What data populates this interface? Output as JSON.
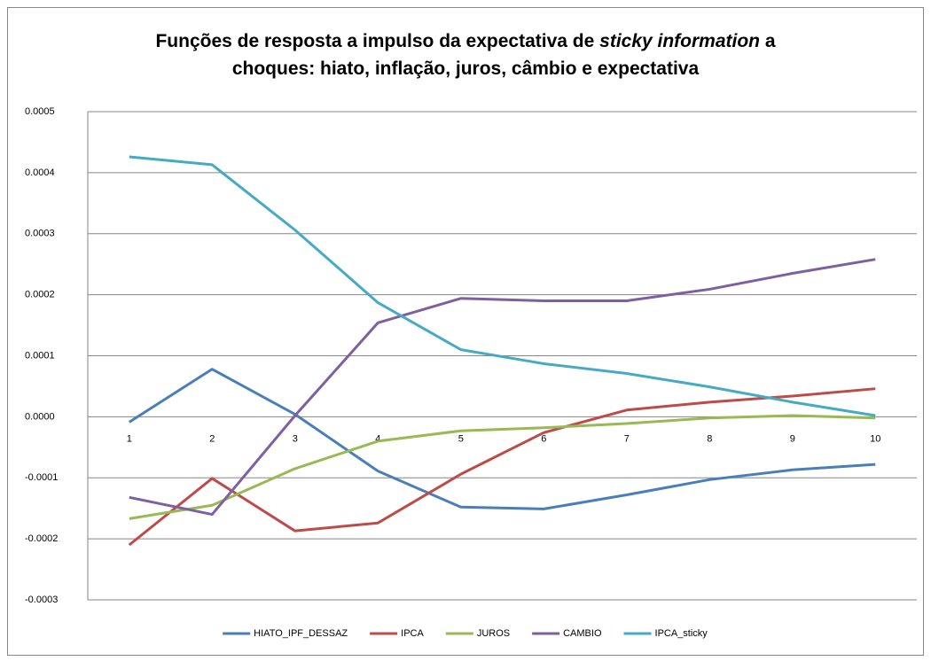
{
  "chart_data": {
    "type": "line",
    "title": [
      [
        {
          "text": "Funções de resposta a impulso da expectativa de ",
          "italic": false
        },
        {
          "text": "sticky information",
          "italic": true
        },
        {
          "text": " a",
          "italic": false
        }
      ],
      [
        {
          "text": "choques: hiato, inflação, juros, câmbio e expectativa",
          "italic": false
        }
      ]
    ],
    "categories": [
      "1",
      "2",
      "3",
      "4",
      "5",
      "6",
      "7",
      "8",
      "9",
      "10"
    ],
    "series": [
      {
        "name": "HIATO_IPF_DESSAZ",
        "color": "#4a7ebb",
        "values": [
          -8.7e-06,
          7.8e-05,
          4e-06,
          -8.9e-05,
          -0.000148,
          -0.000151,
          -0.000128,
          -0.000103,
          -8.7e-05,
          -7.8e-05
        ]
      },
      {
        "name": "IPCA",
        "color": "#be4b48",
        "values": [
          -0.00021,
          -0.000101,
          -0.000187,
          -0.000174,
          -9.4e-05,
          -2.6e-05,
          1.1e-05,
          2.4e-05,
          3.4e-05,
          4.6e-05
        ]
      },
      {
        "name": "JUROS",
        "color": "#98b954",
        "values": [
          -0.000167,
          -0.000145,
          -8.5e-05,
          -4e-05,
          -2.3e-05,
          -1.8e-05,
          -1.1e-05,
          -2e-06,
          2e-06,
          -2e-06
        ]
      },
      {
        "name": "CAMBIO",
        "color": "#7d60a0",
        "values": [
          -0.000132,
          -0.00016,
          2e-06,
          0.000154,
          0.000194,
          0.00019,
          0.00019,
          0.000209,
          0.000235,
          0.000258
        ]
      },
      {
        "name": "IPCA_sticky",
        "color": "#46aac5",
        "values": [
          0.000426,
          0.000413,
          0.000306,
          0.000187,
          0.00011,
          8.7e-05,
          7.1e-05,
          4.9e-05,
          2.4e-05,
          2e-06
        ]
      }
    ],
    "ylim": [
      -0.0003,
      0.0005
    ],
    "yticks": [
      {
        "value": -0.0003,
        "label": "-0.0003"
      },
      {
        "value": -0.0002,
        "label": "-0.0002"
      },
      {
        "value": -0.0001,
        "label": "-0.0001"
      },
      {
        "value": 0,
        "label": "0.0000"
      },
      {
        "value": 0.0001,
        "label": "0.0001"
      },
      {
        "value": 0.0002,
        "label": "0.0002"
      },
      {
        "value": 0.0003,
        "label": "0.0003"
      },
      {
        "value": 0.0004,
        "label": "0.0004"
      },
      {
        "value": 0.0005,
        "label": "0.0005"
      }
    ],
    "grid": true,
    "legend": "bottom"
  }
}
